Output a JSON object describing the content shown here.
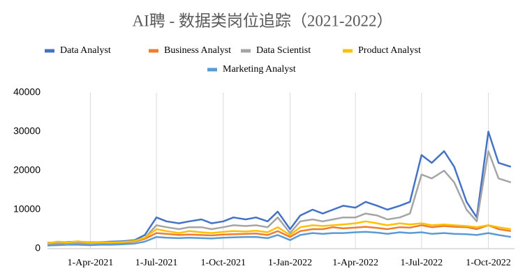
{
  "chart_data": {
    "type": "line",
    "title": "AI聘 - 数据类岗位追踪（2021-2022）",
    "x": [
      "2021-02-01",
      "2021-02-15",
      "2021-03-01",
      "2021-03-15",
      "2021-04-01",
      "2021-04-15",
      "2021-05-01",
      "2021-05-15",
      "2021-06-01",
      "2021-06-15",
      "2021-07-01",
      "2021-07-15",
      "2021-08-01",
      "2021-08-15",
      "2021-09-01",
      "2021-09-15",
      "2021-10-01",
      "2021-10-15",
      "2021-11-01",
      "2021-11-15",
      "2021-12-01",
      "2021-12-15",
      "2022-01-01",
      "2022-01-15",
      "2022-02-01",
      "2022-02-15",
      "2022-03-01",
      "2022-03-15",
      "2022-04-01",
      "2022-04-15",
      "2022-05-01",
      "2022-05-15",
      "2022-06-01",
      "2022-06-15",
      "2022-07-01",
      "2022-07-15",
      "2022-08-01",
      "2022-08-15",
      "2022-09-01",
      "2022-09-15",
      "2022-10-01",
      "2022-10-15",
      "2022-11-01"
    ],
    "xlim": [
      "2021-02-01",
      "2022-11-06"
    ],
    "xticks": [
      {
        "value": "2021-04-01",
        "label": "1-Apr-2021"
      },
      {
        "value": "2021-07-01",
        "label": "1-Jul-2021"
      },
      {
        "value": "2021-10-01",
        "label": "1-Oct-2021"
      },
      {
        "value": "2022-01-01",
        "label": "1-Jan-2022"
      },
      {
        "value": "2022-04-01",
        "label": "1-Apr-2022"
      },
      {
        "value": "2022-07-01",
        "label": "1-Jul-2022"
      },
      {
        "value": "2022-10-01",
        "label": "1-Oct-2022"
      }
    ],
    "ylim": [
      0,
      40000
    ],
    "yticks": [
      0,
      10000,
      20000,
      30000,
      40000
    ],
    "grid": true,
    "legend": "top",
    "series": [
      {
        "name": "Data Analyst",
        "color": "#4472c4",
        "values": [
          1500,
          1600,
          1700,
          1800,
          1600,
          1700,
          1800,
          1900,
          2200,
          3500,
          8000,
          7000,
          6500,
          7000,
          7500,
          6500,
          7000,
          8000,
          7500,
          8000,
          7000,
          9500,
          5000,
          8500,
          10000,
          9000,
          10000,
          11000,
          10500,
          12000,
          11000,
          10000,
          11000,
          12000,
          24000,
          22000,
          25000,
          21000,
          12000,
          8000,
          30000,
          22000,
          21000
        ]
      },
      {
        "name": "Business Analyst",
        "color": "#ed7d31",
        "values": [
          1200,
          1300,
          1500,
          1400,
          1200,
          1300,
          1400,
          1500,
          1800,
          2500,
          4000,
          3800,
          3500,
          3600,
          3500,
          3400,
          3600,
          3700,
          3800,
          3900,
          3500,
          4500,
          3000,
          4500,
          5000,
          5000,
          5500,
          5200,
          5400,
          5600,
          5300,
          5000,
          5500,
          5400,
          6000,
          5500,
          5800,
          5600,
          5500,
          5000,
          6000,
          5000,
          4500
        ]
      },
      {
        "name": "Data Scientist",
        "color": "#a5a5a5",
        "values": [
          1300,
          1400,
          1500,
          1500,
          1300,
          1400,
          1500,
          1600,
          1900,
          2800,
          6000,
          5500,
          5000,
          5500,
          5500,
          5000,
          5500,
          6000,
          5800,
          6000,
          5500,
          8000,
          4000,
          7000,
          7500,
          7000,
          7500,
          8000,
          8000,
          9000,
          8500,
          7500,
          8000,
          9000,
          19000,
          18000,
          20000,
          17000,
          10000,
          7000,
          25000,
          18000,
          17000
        ]
      },
      {
        "name": "Product Analyst",
        "color": "#ffc000",
        "values": [
          1400,
          1800,
          1600,
          1900,
          1500,
          1700,
          1600,
          1700,
          2000,
          2800,
          5000,
          4500,
          4000,
          4500,
          4200,
          4000,
          4300,
          4500,
          4400,
          4600,
          4200,
          5500,
          3500,
          5500,
          6000,
          5800,
          6000,
          6200,
          6500,
          7000,
          6500,
          6000,
          6500,
          6200,
          6500,
          6000,
          6200,
          6000,
          5800,
          5500,
          6000,
          5500,
          5000
        ]
      },
      {
        "name": "Marketing Analyst",
        "color": "#5b9bd5",
        "values": [
          800,
          900,
          1000,
          1000,
          900,
          1000,
          1000,
          1100,
          1300,
          1800,
          3000,
          2800,
          2700,
          2800,
          2700,
          2600,
          2800,
          2900,
          3000,
          3000,
          2700,
          3500,
          2200,
          3500,
          4000,
          3800,
          4000,
          4000,
          4200,
          4300,
          4100,
          3800,
          4200,
          4000,
          4200,
          3800,
          4000,
          3800,
          3700,
          3500,
          4000,
          3500,
          3000
        ]
      }
    ]
  }
}
